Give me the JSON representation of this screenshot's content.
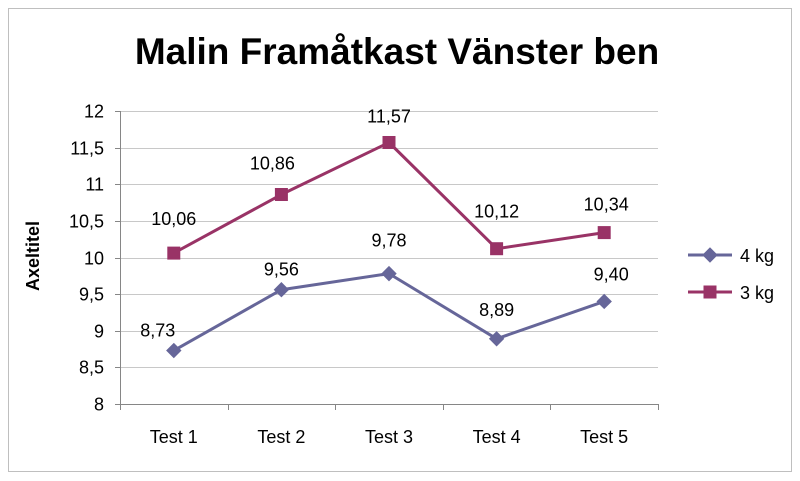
{
  "chart_data": {
    "type": "line",
    "title": "Malin Framåtkast Vänster ben",
    "xlabel": "",
    "ylabel": "Axeltitel",
    "categories": [
      "Test 1",
      "Test 2",
      "Test 3",
      "Test 4",
      "Test 5"
    ],
    "ylim": [
      8,
      12
    ],
    "yticks": [
      8,
      8.5,
      9,
      9.5,
      10,
      10.5,
      11,
      11.5,
      12
    ],
    "ytick_labels": [
      "8",
      "8,5",
      "9",
      "9,5",
      "10",
      "10,5",
      "11",
      "11,5",
      "12"
    ],
    "grid": true,
    "legend": "right",
    "series": [
      {
        "name": "4 kg",
        "values": [
          8.73,
          9.56,
          9.78,
          8.89,
          9.4
        ],
        "data_labels": [
          "8,73",
          "9,56",
          "9,78",
          "8,89",
          "9,40"
        ],
        "color": "#666699",
        "marker": "diamond"
      },
      {
        "name": "3 kg",
        "values": [
          10.06,
          10.86,
          11.57,
          10.12,
          10.34
        ],
        "data_labels": [
          "10,06",
          "10,86",
          "11,57",
          "10,12",
          "10,34"
        ],
        "color": "#993366",
        "marker": "square"
      }
    ]
  }
}
